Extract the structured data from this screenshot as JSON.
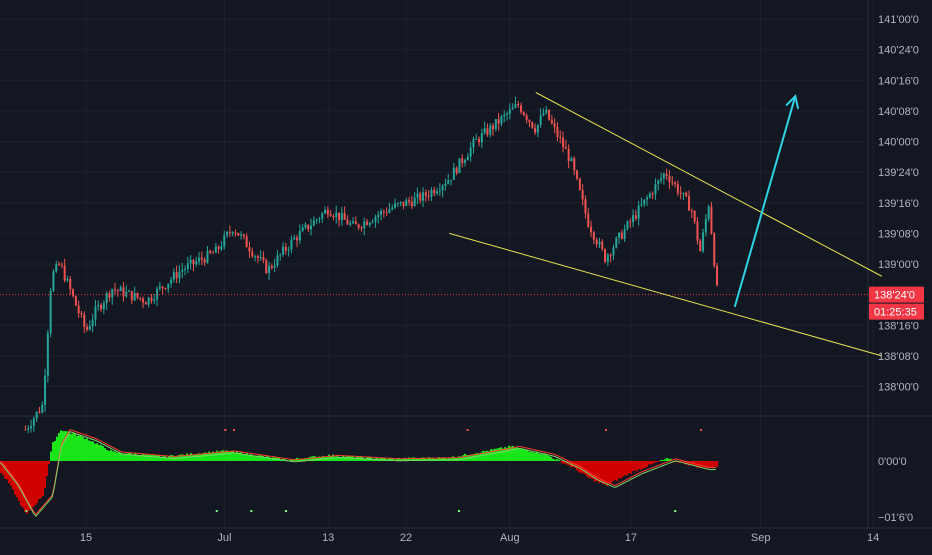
{
  "colors": {
    "background": "#131722",
    "grid": "#1e222d",
    "axis_text": "#b2b5be",
    "separator": "#2a2e39",
    "candle_up": "#26a69a",
    "candle_down": "#ef5350",
    "trend_line": "#e6e34d",
    "arrow": "#2fd3e6",
    "price_line": "#f23645",
    "price_tag": "#f23645",
    "price_tag_text": "#ffffff",
    "hist_up": "#19e619",
    "hist_down": "#d00000",
    "signal_line": "#ff3b30",
    "macd_line": "#7bd46b",
    "marker_red": "#ff4d4d",
    "marker_green": "#7fff7f"
  },
  "chart_data": {
    "type": "candlestick",
    "price_axis": {
      "ticks": [
        {
          "label": "141'00'0",
          "value": 141.0
        },
        {
          "label": "140'24'0",
          "value": 140.75
        },
        {
          "label": "140'16'0",
          "value": 140.5
        },
        {
          "label": "140'08'0",
          "value": 140.25
        },
        {
          "label": "140'00'0",
          "value": 140.0
        },
        {
          "label": "139'24'0",
          "value": 139.75
        },
        {
          "label": "139'16'0",
          "value": 139.5
        },
        {
          "label": "139'08'0",
          "value": 139.25
        },
        {
          "label": "139'00'0",
          "value": 139.0
        },
        {
          "label": "138'16'0",
          "value": 138.5
        },
        {
          "label": "138'08'0",
          "value": 138.25
        },
        {
          "label": "138'00'0",
          "value": 138.0
        }
      ],
      "current_price_label": "138'24'0",
      "current_price": 138.75,
      "countdown": "01:25:35"
    },
    "time_axis": {
      "ticks": [
        {
          "label": "15",
          "date": "2020-06-15"
        },
        {
          "label": "Jul",
          "date": "2020-07-01"
        },
        {
          "label": "13",
          "date": "2020-07-13"
        },
        {
          "label": "22",
          "date": "2020-07-22"
        },
        {
          "label": "Aug",
          "date": "2020-08-03"
        },
        {
          "label": "17",
          "date": "2020-08-17"
        },
        {
          "label": "Sep",
          "date": "2020-09-01"
        },
        {
          "label": "14",
          "date": "2020-09-14"
        }
      ]
    },
    "price_path": [
      {
        "date": "2020-06-08",
        "price": 137.65
      },
      {
        "date": "2020-06-10",
        "price": 137.85
      },
      {
        "date": "2020-06-11",
        "price": 138.9
      },
      {
        "date": "2020-06-12",
        "price": 139.0
      },
      {
        "date": "2020-06-15",
        "price": 138.45
      },
      {
        "date": "2020-06-16",
        "price": 138.6
      },
      {
        "date": "2020-06-18",
        "price": 138.8
      },
      {
        "date": "2020-06-22",
        "price": 138.7
      },
      {
        "date": "2020-06-26",
        "price": 138.95
      },
      {
        "date": "2020-06-30",
        "price": 139.1
      },
      {
        "date": "2020-07-02",
        "price": 139.3
      },
      {
        "date": "2020-07-06",
        "price": 138.95
      },
      {
        "date": "2020-07-09",
        "price": 139.2
      },
      {
        "date": "2020-07-13",
        "price": 139.45
      },
      {
        "date": "2020-07-16",
        "price": 139.3
      },
      {
        "date": "2020-07-20",
        "price": 139.45
      },
      {
        "date": "2020-07-24",
        "price": 139.55
      },
      {
        "date": "2020-07-27",
        "price": 139.7
      },
      {
        "date": "2020-07-30",
        "price": 140.0
      },
      {
        "date": "2020-08-04",
        "price": 140.3
      },
      {
        "date": "2020-08-06",
        "price": 140.1
      },
      {
        "date": "2020-08-07",
        "price": 140.25
      },
      {
        "date": "2020-08-10",
        "price": 139.85
      },
      {
        "date": "2020-08-12",
        "price": 139.35
      },
      {
        "date": "2020-08-14",
        "price": 139.05
      },
      {
        "date": "2020-08-17",
        "price": 139.35
      },
      {
        "date": "2020-08-19",
        "price": 139.55
      },
      {
        "date": "2020-08-21",
        "price": 139.75
      },
      {
        "date": "2020-08-24",
        "price": 139.45
      },
      {
        "date": "2020-08-25",
        "price": 139.1
      },
      {
        "date": "2020-08-26",
        "price": 139.5
      },
      {
        "date": "2020-08-27",
        "price": 138.75
      }
    ],
    "trend_lines": [
      {
        "from": {
          "date": "2020-08-06",
          "price": 140.4
        },
        "to": {
          "date": "2020-09-15",
          "price": 138.9
        }
      },
      {
        "from": {
          "date": "2020-07-27",
          "price": 139.25
        },
        "to": {
          "date": "2020-09-15",
          "price": 138.25
        }
      }
    ],
    "projection_arrow": {
      "from": {
        "date": "2020-08-29",
        "price": 138.65
      },
      "to": {
        "date": "2020-09-05",
        "price": 140.37
      }
    },
    "indicator": {
      "axis_ticks": [
        {
          "label": "0'00'0",
          "value": 0
        },
        {
          "label": "−01'6'0",
          "value": -0.5
        }
      ],
      "histogram": [
        {
          "date": "2020-06-04",
          "value": 0.0
        },
        {
          "date": "2020-06-06",
          "value": -0.2
        },
        {
          "date": "2020-06-08",
          "value": -0.48
        },
        {
          "date": "2020-06-10",
          "value": -0.3
        },
        {
          "date": "2020-06-11",
          "value": 0.15
        },
        {
          "date": "2020-06-12",
          "value": 0.28
        },
        {
          "date": "2020-06-15",
          "value": 0.2
        },
        {
          "date": "2020-06-18",
          "value": 0.08
        },
        {
          "date": "2020-06-24",
          "value": 0.04
        },
        {
          "date": "2020-07-01",
          "value": 0.09
        },
        {
          "date": "2020-07-08",
          "value": 0.01
        },
        {
          "date": "2020-07-13",
          "value": 0.05
        },
        {
          "date": "2020-07-20",
          "value": 0.02
        },
        {
          "date": "2020-07-27",
          "value": 0.03
        },
        {
          "date": "2020-08-03",
          "value": 0.13
        },
        {
          "date": "2020-08-07",
          "value": 0.06
        },
        {
          "date": "2020-08-10",
          "value": -0.05
        },
        {
          "date": "2020-08-12",
          "value": -0.15
        },
        {
          "date": "2020-08-14",
          "value": -0.22
        },
        {
          "date": "2020-08-17",
          "value": -0.1
        },
        {
          "date": "2020-08-21",
          "value": 0.02
        },
        {
          "date": "2020-08-25",
          "value": -0.06
        },
        {
          "date": "2020-08-27",
          "value": -0.05
        }
      ],
      "red_markers": [
        "2020-07-01",
        "2020-07-02",
        "2020-07-29",
        "2020-08-14",
        "2020-08-25"
      ],
      "green_markers": [
        "2020-06-08",
        "2020-06-30",
        "2020-07-04",
        "2020-07-08",
        "2020-07-28",
        "2020-08-22"
      ]
    }
  }
}
